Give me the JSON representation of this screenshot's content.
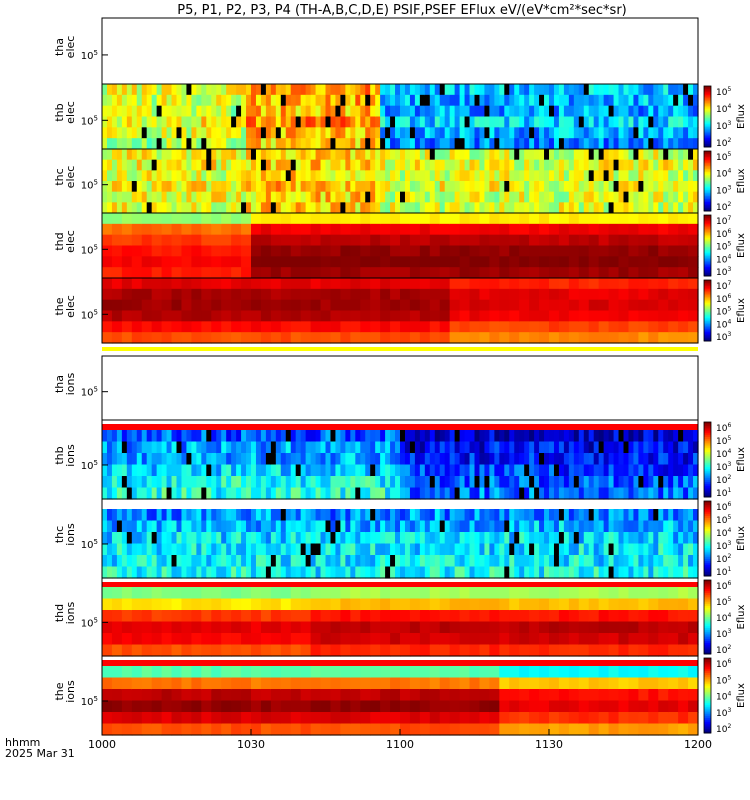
{
  "chart_data": {
    "type": "heatmap",
    "title": "P5, P1, P2, P3, P4 (TH-A,B,C,D,E) PSIF,PSEF EFlux eV/(eV*cm²*sec*sr)",
    "x_ticks": [
      "1000",
      "1030",
      "1100",
      "1130",
      "1200"
    ],
    "x_range_minutes": [
      0,
      120
    ],
    "x_label_top": "hhmm",
    "x_label_bottom": "2025 Mar 31",
    "colorbar_label": "Eflux",
    "panels": [
      {
        "id": "tha-elec",
        "name_top": "tha",
        "name_bottom": "elec",
        "y_tick": "10",
        "y_tick_exp": "5",
        "empty": true,
        "colorbar": null,
        "field": null
      },
      {
        "id": "thb-elec",
        "name_top": "thb",
        "name_bottom": "elec",
        "y_tick": "10",
        "y_tick_exp": "5",
        "colorbar": {
          "ticks": [
            [
              "10",
              "5"
            ],
            [
              "10",
              "4"
            ],
            [
              "10",
              "3"
            ],
            [
              "10",
              "2"
            ]
          ]
        },
        "field": {
          "pattern": "noise",
          "segments": [
            [
              0,
              29,
              0.58
            ],
            [
              29,
              56,
              0.7
            ],
            [
              56,
              120,
              0.3
            ]
          ],
          "row_shift": [
            0.02,
            0.0,
            -0.02,
            0.04,
            0.0,
            -0.04
          ]
        }
      },
      {
        "id": "thc-elec",
        "name_top": "thc",
        "name_bottom": "elec",
        "y_tick": "10",
        "y_tick_exp": "5",
        "colorbar": {
          "ticks": [
            [
              "10",
              "5"
            ],
            [
              "10",
              "4"
            ],
            [
              "10",
              "3"
            ],
            [
              "10",
              "2"
            ]
          ]
        },
        "field": {
          "pattern": "noise",
          "segments": [
            [
              0,
              29,
              0.6
            ],
            [
              29,
              56,
              0.66
            ],
            [
              56,
              120,
              0.58
            ]
          ],
          "row_shift": [
            0.0,
            0.02,
            0.0,
            0.02,
            0.0,
            0.0
          ]
        }
      },
      {
        "id": "thd-elec",
        "name_top": "thd",
        "name_bottom": "elec",
        "y_tick": "10",
        "y_tick_exp": "5",
        "colorbar": {
          "ticks": [
            [
              "10",
              "7"
            ],
            [
              "10",
              "6"
            ],
            [
              "10",
              "5"
            ],
            [
              "10",
              "4"
            ],
            [
              "10",
              "3"
            ]
          ]
        },
        "field": {
          "pattern": "smooth",
          "segments": [
            [
              0,
              31,
              0.82
            ],
            [
              31,
              120,
              0.94
            ]
          ],
          "row_shift": [
            -0.3,
            -0.05,
            0.0,
            0.04,
            0.06,
            0.03
          ]
        }
      },
      {
        "id": "the-elec",
        "name_top": "the",
        "name_bottom": "elec",
        "y_tick": "10",
        "y_tick_exp": "5",
        "colorbar": {
          "ticks": [
            [
              "10",
              "7"
            ],
            [
              "10",
              "6"
            ],
            [
              "10",
              "5"
            ],
            [
              "10",
              "4"
            ],
            [
              "10",
              "3"
            ]
          ]
        },
        "field": {
          "pattern": "smooth",
          "segments": [
            [
              0,
              70,
              0.92
            ],
            [
              70,
              120,
              0.86
            ]
          ],
          "row_shift": [
            -0.02,
            0.04,
            0.05,
            0.03,
            -0.05,
            -0.12
          ]
        }
      },
      {
        "id": "tha-ions",
        "name_top": "tha",
        "name_bottom": "ions",
        "y_tick": "10",
        "y_tick_exp": "5",
        "empty": true,
        "colorbar": null,
        "field": null
      },
      {
        "id": "thb-ions",
        "name_top": "thb",
        "name_bottom": "ions",
        "y_tick": "10",
        "y_tick_exp": "5",
        "colorbar": {
          "ticks": [
            [
              "10",
              "6"
            ],
            [
              "10",
              "5"
            ],
            [
              "10",
              "4"
            ],
            [
              "10",
              "3"
            ],
            [
              "10",
              "2"
            ],
            [
              "10",
              "1"
            ]
          ]
        },
        "field": {
          "pattern": "noise",
          "segments": [
            [
              0,
              60,
              0.28
            ],
            [
              60,
              120,
              0.12
            ]
          ],
          "row_shift": [
            -0.06,
            0.0,
            0.02,
            0.06,
            0.1,
            0.12
          ]
        }
      },
      {
        "id": "thc-ions",
        "name_top": "thc",
        "name_bottom": "ions",
        "y_tick": "10",
        "y_tick_exp": "5",
        "colorbar": {
          "ticks": [
            [
              "10",
              "6"
            ],
            [
              "10",
              "5"
            ],
            [
              "10",
              "4"
            ],
            [
              "10",
              "3"
            ],
            [
              "10",
              "2"
            ],
            [
              "10",
              "1"
            ]
          ]
        },
        "field": {
          "pattern": "noise",
          "segments": [
            [
              0,
              120,
              0.3
            ]
          ],
          "row_shift": [
            -0.04,
            0.0,
            0.04,
            0.06,
            0.06,
            0.08
          ]
        }
      },
      {
        "id": "thd-ions",
        "name_top": "thd",
        "name_bottom": "ions",
        "y_tick": "10",
        "y_tick_exp": "5",
        "colorbar": {
          "ticks": [
            [
              "10",
              "6"
            ],
            [
              "10",
              "5"
            ],
            [
              "10",
              "4"
            ],
            [
              "10",
              "3"
            ],
            [
              "10",
              "2"
            ]
          ]
        },
        "field": {
          "pattern": "smooth",
          "segments": [
            [
              0,
              42,
              0.8
            ],
            [
              42,
              120,
              0.84
            ]
          ],
          "row_shift": [
            -0.3,
            -0.15,
            0.02,
            0.1,
            0.08,
            0.0
          ]
        }
      },
      {
        "id": "the-ions",
        "name_top": "the",
        "name_bottom": "ions",
        "y_tick": "10",
        "y_tick_exp": "5",
        "colorbar": {
          "ticks": [
            [
              "10",
              "6"
            ],
            [
              "10",
              "5"
            ],
            [
              "10",
              "4"
            ],
            [
              "10",
              "3"
            ],
            [
              "10",
              "2"
            ]
          ]
        },
        "field": {
          "pattern": "smooth",
          "segments": [
            [
              0,
              80,
              0.86
            ],
            [
              80,
              120,
              0.78
            ]
          ],
          "row_shift": [
            -0.4,
            -0.1,
            0.08,
            0.12,
            0.05,
            -0.06
          ]
        }
      }
    ]
  }
}
